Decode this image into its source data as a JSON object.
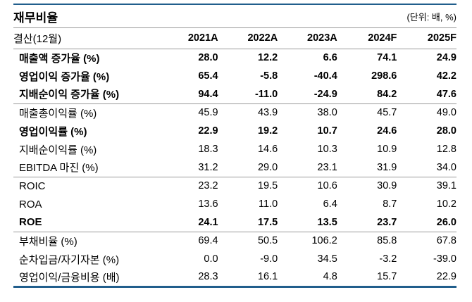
{
  "header": {
    "title": "재무비율",
    "unit_note": "(단위: 배, %)"
  },
  "table": {
    "corner_label": "결산(12월)",
    "columns": [
      "2021A",
      "2022A",
      "2023A",
      "2024F",
      "2025F"
    ],
    "groups": [
      {
        "rows": [
          {
            "label": "매출액 증가율 (%)",
            "bold": true,
            "values": [
              "28.0",
              "12.2",
              "6.6",
              "74.1",
              "24.9"
            ]
          },
          {
            "label": "영업이익 증가율 (%)",
            "bold": true,
            "values": [
              "65.4",
              "-5.8",
              "-40.4",
              "298.6",
              "42.2"
            ]
          },
          {
            "label": "지배순이익 증가율 (%)",
            "bold": true,
            "values": [
              "94.4",
              "-11.0",
              "-24.9",
              "84.2",
              "47.6"
            ]
          }
        ]
      },
      {
        "rows": [
          {
            "label": "매출총이익률 (%)",
            "bold": false,
            "values": [
              "45.9",
              "43.9",
              "38.0",
              "45.7",
              "49.0"
            ]
          },
          {
            "label": "영업이익률 (%)",
            "bold": true,
            "values": [
              "22.9",
              "19.2",
              "10.7",
              "24.6",
              "28.0"
            ]
          },
          {
            "label": "지배순이익률 (%)",
            "bold": false,
            "values": [
              "18.3",
              "14.6",
              "10.3",
              "10.9",
              "12.8"
            ]
          },
          {
            "label": "EBITDA 마진 (%)",
            "bold": false,
            "values": [
              "31.2",
              "29.0",
              "23.1",
              "31.9",
              "34.0"
            ]
          }
        ]
      },
      {
        "rows": [
          {
            "label": "ROIC",
            "bold": false,
            "values": [
              "23.2",
              "19.5",
              "10.6",
              "30.9",
              "39.1"
            ]
          },
          {
            "label": "ROA",
            "bold": false,
            "values": [
              "13.6",
              "11.0",
              "6.4",
              "8.7",
              "10.2"
            ]
          },
          {
            "label": "ROE",
            "bold": true,
            "values": [
              "24.1",
              "17.5",
              "13.5",
              "23.7",
              "26.0"
            ]
          }
        ]
      },
      {
        "rows": [
          {
            "label": "부채비율 (%)",
            "bold": false,
            "values": [
              "69.4",
              "50.5",
              "106.2",
              "85.8",
              "67.8"
            ]
          },
          {
            "label": "순차입금/자기자본 (%)",
            "bold": false,
            "values": [
              "0.0",
              "-9.0",
              "34.5",
              "-3.2",
              "-39.0"
            ]
          },
          {
            "label": "영업이익/금융비용 (배)",
            "bold": false,
            "values": [
              "28.3",
              "16.1",
              "4.8",
              "15.7",
              "22.9"
            ]
          }
        ]
      }
    ]
  },
  "colors": {
    "accent_line": "#215e8c",
    "separator": "#9a9a9a",
    "text": "#000000"
  }
}
